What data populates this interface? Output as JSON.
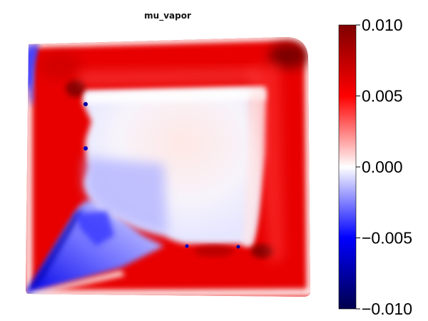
{
  "chart_data": {
    "type": "heatmap",
    "title": "mu_vapor",
    "xlabel": "",
    "ylabel": "",
    "grid": false,
    "axes_visible": false,
    "colormap": "seismic",
    "colormap_stops": [
      "#00004c",
      "#0000ff",
      "#ffffff",
      "#ff0000",
      "#7f0000"
    ],
    "colorbar": {
      "position": "right",
      "range": [
        -0.01,
        0.01
      ],
      "ticks": [
        {
          "value": 0.01,
          "label": "0.010"
        },
        {
          "value": 0.005,
          "label": "0.005"
        },
        {
          "value": 0.0,
          "label": "0.000"
        },
        {
          "value": -0.005,
          "label": "−0.005"
        },
        {
          "value": -0.01,
          "label": "−0.010"
        }
      ]
    },
    "field_description_values": {
      "outer_band": 0.0055,
      "corner_dark_spots": 0.0085,
      "inner_region_upper": 0.0008,
      "inner_region_left": -0.0025,
      "lower_left_wedge": -0.0065,
      "left_edge_strip": -0.007
    }
  }
}
